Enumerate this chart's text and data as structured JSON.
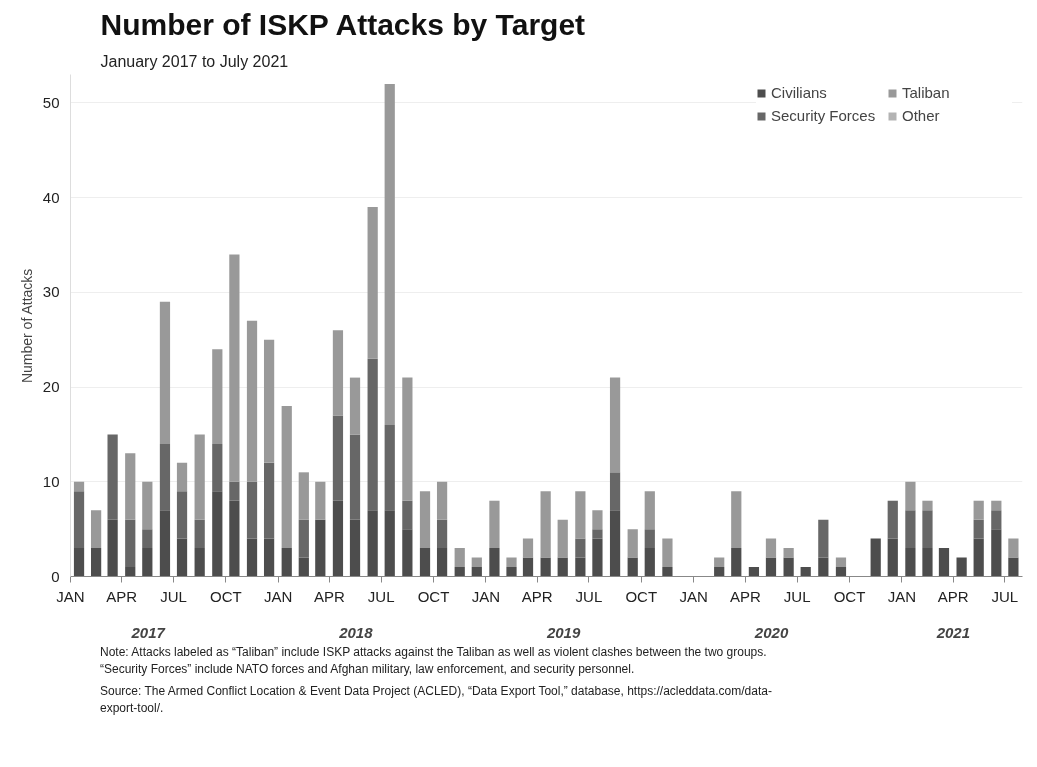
{
  "chart_data": {
    "type": "bar",
    "title": "Number of ISKP Attacks by Target",
    "subtitle": "January 2017 to July 2021",
    "ylabel": "Number of Attacks",
    "x": [
      "2017-01-16",
      "2017-02-15",
      "2017-03-16",
      "2017-04-16",
      "2017-05-16",
      "2017-06-16",
      "2017-07-16",
      "2017-08-16",
      "2017-09-16",
      "2017-10-16",
      "2017-11-16",
      "2017-12-16",
      "2018-01-16",
      "2018-02-15",
      "2018-03-16",
      "2018-04-16",
      "2018-05-16",
      "2018-06-16",
      "2018-07-16",
      "2018-08-16",
      "2018-09-16",
      "2018-10-16",
      "2018-11-16",
      "2018-12-16",
      "2019-01-16",
      "2019-02-15",
      "2019-03-16",
      "2019-04-16",
      "2019-05-16",
      "2019-06-16",
      "2019-07-16",
      "2019-08-16",
      "2019-09-16",
      "2019-10-16",
      "2019-11-16",
      "2019-12-16",
      "2020-01-16",
      "2020-02-15",
      "2020-03-16",
      "2020-04-16",
      "2020-05-16",
      "2020-06-16",
      "2020-07-16",
      "2020-08-16",
      "2020-09-16",
      "2020-10-16",
      "2020-11-16",
      "2020-12-16",
      "2021-01-16",
      "2021-02-15",
      "2021-03-16",
      "2021-04-16",
      "2021-05-16",
      "2021-06-16",
      "2021-07-16"
    ],
    "stacked": true,
    "series": [
      {
        "name": "Civilians",
        "color": "#4d4d4d",
        "values": [
          3,
          3,
          6,
          1,
          3,
          7,
          4,
          3,
          9,
          8,
          4,
          4,
          3,
          2,
          6,
          8,
          6,
          7,
          7,
          5,
          3,
          3,
          1,
          1,
          3,
          1,
          2,
          2,
          2,
          2,
          4,
          7,
          2,
          3,
          1,
          0,
          0,
          1,
          3,
          1,
          2,
          2,
          1,
          2,
          1,
          0,
          4,
          4,
          3,
          3,
          3,
          2,
          4,
          5,
          2
        ]
      },
      {
        "name": "Security Forces",
        "color": "#676767",
        "values": [
          6,
          0,
          9,
          5,
          2,
          7,
          5,
          3,
          5,
          2,
          6,
          8,
          0,
          4,
          0,
          9,
          9,
          16,
          9,
          3,
          0,
          3,
          0,
          0,
          0,
          0,
          0,
          0,
          0,
          2,
          1,
          4,
          0,
          2,
          0,
          0,
          0,
          0,
          0,
          0,
          0,
          0,
          0,
          4,
          0,
          0,
          0,
          4,
          4,
          4,
          0,
          0,
          2,
          2,
          0
        ]
      },
      {
        "name": "Taliban",
        "color": "#999999",
        "values": [
          1,
          4,
          0,
          7,
          5,
          15,
          3,
          9,
          10,
          24,
          17,
          13,
          15,
          5,
          4,
          9,
          6,
          16,
          36,
          13,
          6,
          4,
          2,
          1,
          5,
          1,
          2,
          7,
          4,
          5,
          2,
          10,
          3,
          4,
          3,
          0,
          0,
          1,
          6,
          0,
          2,
          1,
          0,
          0,
          1,
          0,
          0,
          0,
          3,
          1,
          0,
          0,
          2,
          1,
          2
        ]
      },
      {
        "name": "Other",
        "color": "#b3b3b3",
        "values": [
          0,
          0,
          0,
          0,
          0,
          0,
          0,
          0,
          0,
          0,
          0,
          0,
          0,
          0,
          0,
          0,
          0,
          0,
          0,
          0,
          0,
          0,
          0,
          0,
          0,
          0,
          0,
          0,
          0,
          0,
          0,
          0,
          0,
          0,
          0,
          0,
          0,
          0,
          0,
          0,
          0,
          0,
          0,
          0,
          0,
          0,
          0,
          0,
          0,
          0,
          0,
          0,
          0,
          0,
          0
        ]
      }
    ],
    "xlim": [
      "2017-01-01",
      "2021-08-01"
    ],
    "xticks": [
      {
        "value": "2017-01-01",
        "label": "JAN"
      },
      {
        "value": "2017-04-01",
        "label": "APR"
      },
      {
        "value": "2017-07-01",
        "label": "JUL"
      },
      {
        "value": "2017-10-01",
        "label": "OCT"
      },
      {
        "value": "2018-01-01",
        "label": "JAN"
      },
      {
        "value": "2018-04-01",
        "label": "APR"
      },
      {
        "value": "2018-07-01",
        "label": "JUL"
      },
      {
        "value": "2018-10-01",
        "label": "OCT"
      },
      {
        "value": "2019-01-01",
        "label": "JAN"
      },
      {
        "value": "2019-04-01",
        "label": "APR"
      },
      {
        "value": "2019-07-01",
        "label": "JUL"
      },
      {
        "value": "2019-10-01",
        "label": "OCT"
      },
      {
        "value": "2020-01-01",
        "label": "JAN"
      },
      {
        "value": "2020-04-01",
        "label": "APR"
      },
      {
        "value": "2020-07-01",
        "label": "JUL"
      },
      {
        "value": "2020-10-01",
        "label": "OCT"
      },
      {
        "value": "2021-01-01",
        "label": "JAN"
      },
      {
        "value": "2021-04-01",
        "label": "APR"
      },
      {
        "value": "2021-07-01",
        "label": "JUL"
      }
    ],
    "ylim": [
      0,
      53
    ],
    "yticks": [
      0,
      10,
      20,
      30,
      40,
      50
    ],
    "grid": "y",
    "legend": "top right",
    "annotations": [
      "2017",
      "2018",
      "2019",
      "2020",
      "2021",
      "Note: Attacks labeled as “Taliban” include ISKP attacks against the Taliban as well as violent clashes between the two groups. “Security Forces” include NATO forces and Afghan military, law enforcement, and security personnel.",
      "Source: The Armed Conflict Location & Event Data Project (ACLED), “Data Export Tool,” database, https://acleddata.com/data-export-tool/."
    ]
  }
}
